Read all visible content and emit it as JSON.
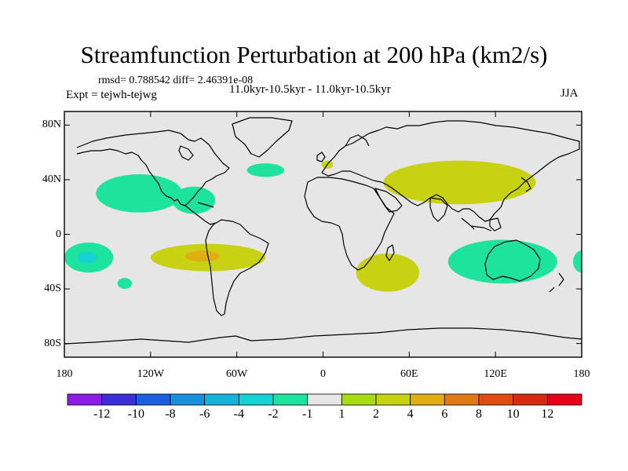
{
  "title": "Streamfunction Perturbation at 200 hPa (km2/s)",
  "stats_text": "rmsd= 0.788542 diff= 2.46391e-08",
  "experiment_text": "Expt = tejwh-tejwg",
  "period_text": "11.0kyr-10.5kyr - 11.0kyr-10.5kyr",
  "season": "JJA",
  "chart_data": {
    "type": "contour-map",
    "projection": "cylindrical-equidistant",
    "lon_range": [
      -180,
      180
    ],
    "lat_range": [
      -90,
      90
    ],
    "x_tick_values": [
      -180,
      -120,
      -60,
      0,
      60,
      120,
      180
    ],
    "x_tick_labels": [
      "180",
      "120W",
      "60W",
      "0",
      "60E",
      "120E",
      "180"
    ],
    "y_tick_values": [
      80,
      40,
      0,
      -40,
      -80
    ],
    "y_tick_labels": [
      "80N",
      "40N",
      "0",
      "40S",
      "80S"
    ],
    "features": [
      {
        "name": "NE Pacific negative",
        "category": -2,
        "lon": -128,
        "lat": 30,
        "rlon": 30,
        "rlat": 14
      },
      {
        "name": "Gulf of Mexico negative",
        "category": -2,
        "lon": -90,
        "lat": 25,
        "rlon": 15,
        "rlat": 10
      },
      {
        "name": "North Atlantic negative",
        "category": -2,
        "lon": -40,
        "lat": 47,
        "rlon": 13,
        "rlat": 5
      },
      {
        "name": "S Pacific negative",
        "category": -2,
        "lon": -163,
        "lat": -17,
        "rlon": 17,
        "rlat": 11
      },
      {
        "name": "S Pacific negative core",
        "category": -4,
        "lon": -164,
        "lat": -17,
        "rlon": 7,
        "rlat": 4
      },
      {
        "name": "S Pacific small negative",
        "category": -2,
        "lon": -138,
        "lat": -36,
        "rlon": 5,
        "rlat": 4
      },
      {
        "name": "Australia negative",
        "category": -2,
        "lon": 125,
        "lat": -20,
        "rlon": 38,
        "rlat": 16
      },
      {
        "name": "E Pacific edge negative",
        "category": -2,
        "lon": 180,
        "lat": -20,
        "rlon": 6,
        "rlat": 8
      },
      {
        "name": "Asia positive",
        "category": 2,
        "lon": 95,
        "lat": 38,
        "rlon": 53,
        "rlat": 16
      },
      {
        "name": "Tropical S Pacific positive",
        "category": 2,
        "lon": -80,
        "lat": -17,
        "rlon": 40,
        "rlat": 10
      },
      {
        "name": "Tropical S Pacific positive core",
        "category": 4,
        "lon": -84,
        "lat": -16,
        "rlon": 12,
        "rlat": 4
      },
      {
        "name": "S Africa positive",
        "category": 2,
        "lon": 45,
        "lat": -28,
        "rlon": 22,
        "rlat": 14
      },
      {
        "name": "Europe small positive",
        "category": 2,
        "lon": 3,
        "lat": 51,
        "rlon": 4,
        "rlat": 3
      }
    ],
    "colorbar": {
      "levels": [
        -12,
        -10,
        -8,
        -6,
        -4,
        -2,
        -1,
        1,
        2,
        4,
        6,
        8,
        10,
        12
      ],
      "labels": [
        "-12",
        "-10",
        "-8",
        "-6",
        "-4",
        "-2",
        "-1",
        "1",
        "2",
        "4",
        "6",
        "8",
        "10",
        "12"
      ],
      "colors": [
        "#8a1de6",
        "#3a2fd6",
        "#1b5ee0",
        "#1890dc",
        "#14b4da",
        "#15d2d6",
        "#1ee39e",
        "#e6e6e6",
        "#a5dc12",
        "#c8d212",
        "#e0ad12",
        "#e07a12",
        "#e04c12",
        "#d62a12",
        "#e6001a"
      ]
    }
  },
  "colors": {
    "ocean": "#e6e6e6",
    "coastline": "#000000"
  }
}
